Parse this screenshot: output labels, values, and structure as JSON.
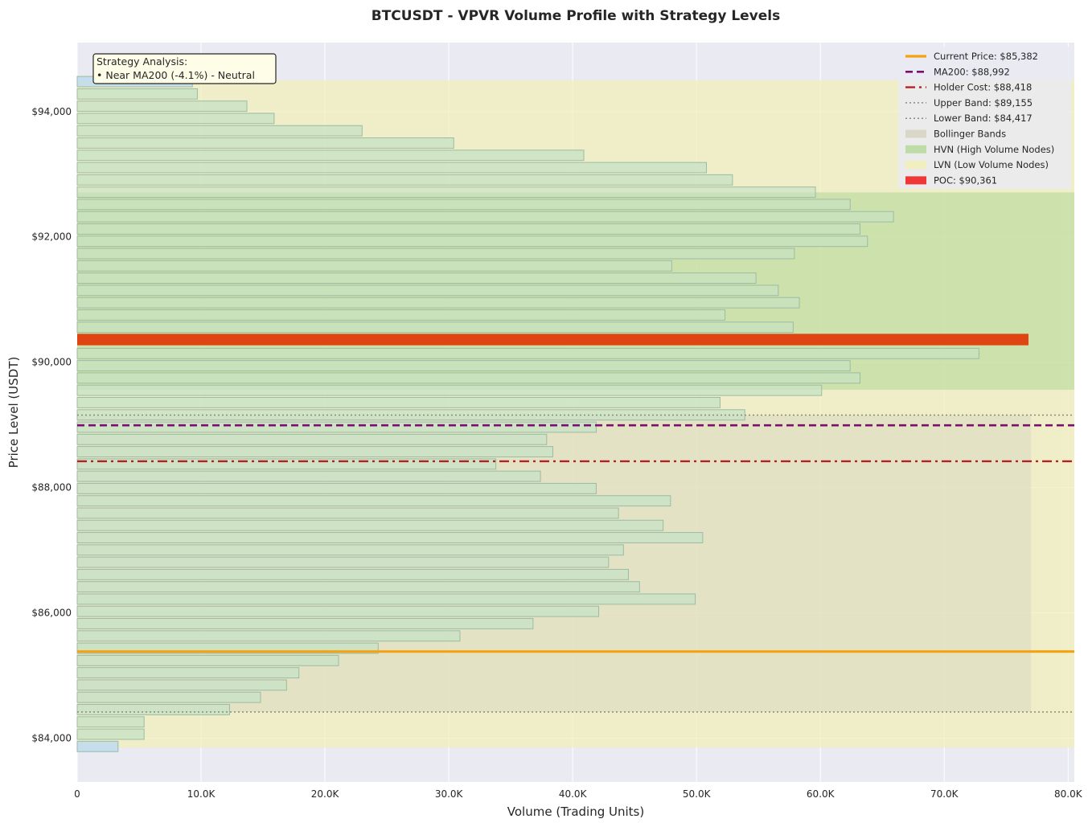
{
  "chart_data": {
    "type": "bar",
    "orientation": "horizontal",
    "title": "BTCUSDT - VPVR Volume Profile with Strategy Levels",
    "xlabel": "Volume (Trading Units)",
    "ylabel": "Price Level (USDT)",
    "xlim": [
      0,
      80500
    ],
    "ylim": [
      83300,
      95100
    ],
    "x_tick_values": [
      0,
      10000,
      20000,
      30000,
      40000,
      50000,
      60000,
      70000,
      80000
    ],
    "x_tick_labels": [
      "0",
      "10.0K",
      "20.0K",
      "30.0K",
      "40.0K",
      "50.0K",
      "60.0K",
      "70.0K",
      "80.0K"
    ],
    "y_tick_values": [
      84000,
      86000,
      88000,
      90000,
      92000,
      94000
    ],
    "y_tick_labels": [
      "$84,000",
      "$86,000",
      "$88,000",
      "$90,000",
      "$92,000",
      "$94,000"
    ],
    "grid": true,
    "legend_position": "top-right",
    "bin_height": 196,
    "volume_bins": [
      {
        "price": 83867,
        "volume": 3300,
        "category": "edge"
      },
      {
        "price": 84063,
        "volume": 5400,
        "category": "normal"
      },
      {
        "price": 84259,
        "volume": 5400,
        "category": "normal"
      },
      {
        "price": 84455,
        "volume": 12300,
        "category": "normal"
      },
      {
        "price": 84651,
        "volume": 14800,
        "category": "normal"
      },
      {
        "price": 84847,
        "volume": 16900,
        "category": "normal"
      },
      {
        "price": 85043,
        "volume": 17900,
        "category": "normal"
      },
      {
        "price": 85239,
        "volume": 21100,
        "category": "normal"
      },
      {
        "price": 85435,
        "volume": 24300,
        "category": "normal"
      },
      {
        "price": 85631,
        "volume": 30900,
        "category": "normal"
      },
      {
        "price": 85827,
        "volume": 36800,
        "category": "normal"
      },
      {
        "price": 86023,
        "volume": 42100,
        "category": "normal"
      },
      {
        "price": 86219,
        "volume": 49900,
        "category": "normal"
      },
      {
        "price": 86415,
        "volume": 45400,
        "category": "normal"
      },
      {
        "price": 86611,
        "volume": 44500,
        "category": "normal"
      },
      {
        "price": 86807,
        "volume": 42900,
        "category": "normal"
      },
      {
        "price": 87003,
        "volume": 44100,
        "category": "normal"
      },
      {
        "price": 87199,
        "volume": 50500,
        "category": "normal"
      },
      {
        "price": 87395,
        "volume": 47300,
        "category": "normal"
      },
      {
        "price": 87591,
        "volume": 43700,
        "category": "normal"
      },
      {
        "price": 87787,
        "volume": 47900,
        "category": "normal"
      },
      {
        "price": 87983,
        "volume": 41900,
        "category": "normal"
      },
      {
        "price": 88179,
        "volume": 37400,
        "category": "normal"
      },
      {
        "price": 88375,
        "volume": 33800,
        "category": "normal"
      },
      {
        "price": 88571,
        "volume": 38400,
        "category": "normal"
      },
      {
        "price": 88767,
        "volume": 37900,
        "category": "normal"
      },
      {
        "price": 88963,
        "volume": 41900,
        "category": "normal"
      },
      {
        "price": 89159,
        "volume": 53900,
        "category": "normal"
      },
      {
        "price": 89355,
        "volume": 51900,
        "category": "normal"
      },
      {
        "price": 89551,
        "volume": 60100,
        "category": "normal"
      },
      {
        "price": 89747,
        "volume": 63200,
        "category": "hvn"
      },
      {
        "price": 89943,
        "volume": 62400,
        "category": "hvn"
      },
      {
        "price": 90139,
        "volume": 72800,
        "category": "hvn"
      },
      {
        "price": 90361,
        "volume": 76800,
        "category": "poc"
      },
      {
        "price": 90557,
        "volume": 57800,
        "category": "hvn"
      },
      {
        "price": 90753,
        "volume": 52300,
        "category": "hvn"
      },
      {
        "price": 90949,
        "volume": 58300,
        "category": "hvn"
      },
      {
        "price": 91145,
        "volume": 56600,
        "category": "hvn"
      },
      {
        "price": 91341,
        "volume": 54800,
        "category": "hvn"
      },
      {
        "price": 91537,
        "volume": 48000,
        "category": "hvn"
      },
      {
        "price": 91733,
        "volume": 57900,
        "category": "hvn"
      },
      {
        "price": 91929,
        "volume": 63800,
        "category": "hvn"
      },
      {
        "price": 92125,
        "volume": 63200,
        "category": "hvn"
      },
      {
        "price": 92321,
        "volume": 65900,
        "category": "hvn"
      },
      {
        "price": 92517,
        "volume": 62400,
        "category": "hvn"
      },
      {
        "price": 92713,
        "volume": 59600,
        "category": "hvn"
      },
      {
        "price": 92909,
        "volume": 52900,
        "category": "normal"
      },
      {
        "price": 93105,
        "volume": 50800,
        "category": "normal"
      },
      {
        "price": 93301,
        "volume": 40900,
        "category": "normal"
      },
      {
        "price": 93497,
        "volume": 30400,
        "category": "normal"
      },
      {
        "price": 93693,
        "volume": 23000,
        "category": "normal"
      },
      {
        "price": 93889,
        "volume": 15900,
        "category": "normal"
      },
      {
        "price": 94085,
        "volume": 13700,
        "category": "normal"
      },
      {
        "price": 94281,
        "volume": 9700,
        "category": "normal"
      },
      {
        "price": 94477,
        "volume": 9300,
        "category": "edge"
      }
    ],
    "levels": {
      "current_price": 85382,
      "ma200": 88992,
      "holder_cost": 88418,
      "upper_band": 89155,
      "lower_band": 84417,
      "poc": 90361
    },
    "regions": {
      "lvn_range": [
        83850,
        94500
      ],
      "hvn_range": [
        89560,
        92710
      ],
      "bollinger_range": [
        84417,
        89155
      ],
      "bollinger_volume_extent": 77000
    },
    "legend": [
      {
        "label": "Current Price: $85,382",
        "style": "solid",
        "color": "#f5a212"
      },
      {
        "label": "MA200: $88,992",
        "style": "dashed",
        "color": "#7b0f6f"
      },
      {
        "label": "Holder Cost: $88,418",
        "style": "dashdot",
        "color": "#b22222"
      },
      {
        "label": "Upper Band: $89,155",
        "style": "dotted",
        "color": "#8a8a7a"
      },
      {
        "label": "Lower Band: $84,417",
        "style": "dotted",
        "color": "#8a8a7a"
      },
      {
        "label": "Bollinger Bands",
        "style": "patch",
        "color": "#d6d5c2"
      },
      {
        "label": "HVN (High Volume Nodes)",
        "style": "patch",
        "color": "#b6d99a"
      },
      {
        "label": "LVN (Low Volume Nodes)",
        "style": "patch",
        "color": "#f2efb8"
      },
      {
        "label": "POC: $90,361",
        "style": "patch",
        "color": "#f01818"
      }
    ],
    "annotation": {
      "title": "Strategy Analysis:",
      "line": "• Near MA200 (-4.1%) - Neutral"
    },
    "colors": {
      "plot_background": "#eaeaf2",
      "bar_fill": "#c8e2c4",
      "bar_edge": "#9cbba2",
      "edge_bar_fill": "#bcdaf0",
      "poc_bar": "#de4512",
      "lvn_band": "#f2efb8",
      "hvn_band": "#b6d99a",
      "bollinger_band": "#d6d5c2"
    }
  }
}
